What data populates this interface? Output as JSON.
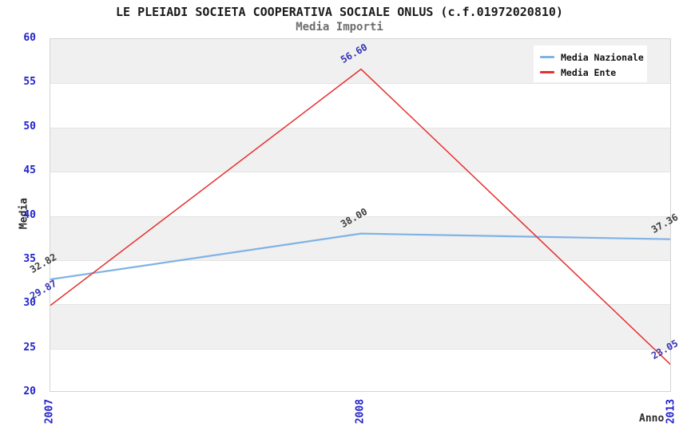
{
  "chart_data": {
    "type": "line",
    "title": "LE PLEIADI SOCIETA COOPERATIVA SOCIALE ONLUS (c.f.01972020810)",
    "subtitle": "Media Importi",
    "xlabel": "Anno",
    "ylabel": "Media",
    "categories": [
      "2007",
      "2008",
      "2013"
    ],
    "ylim": [
      20,
      60
    ],
    "yticks": [
      60,
      55,
      50,
      45,
      40,
      35,
      30,
      25,
      20
    ],
    "grid": "horizontal-bands",
    "legend_position": "top-right",
    "series": [
      {
        "name": "Media Nazionale",
        "color": "#7FB2E5",
        "label_color": "#3c3c3c",
        "values": [
          32.82,
          38.0,
          37.36
        ]
      },
      {
        "name": "Media Ente",
        "color": "#E62F2F",
        "label_color": "#3434b4",
        "values": [
          29.87,
          56.6,
          23.05
        ]
      }
    ],
    "style": {
      "tick_color": "#2222cc",
      "axis_title_color": "#2b2b2b",
      "band_color": "#f0f0f0",
      "band_line_color": "#e4e4e4",
      "plot_border_color": "#d4d4d4",
      "title_color": "#1a1a1a",
      "subtitle_color": "#6e6e6e"
    }
  }
}
